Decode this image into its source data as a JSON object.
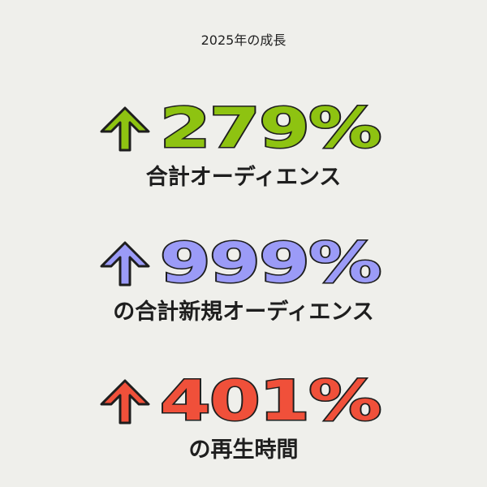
{
  "title": "2025年の成長",
  "stats": [
    {
      "value": "279%",
      "label": "合計オーディエンス",
      "color": "#8ec311",
      "icon": "arrow-up-icon"
    },
    {
      "value": "999%",
      "label": "の合計新規オーディエンス",
      "color": "#9b9bf7",
      "icon": "arrow-up-icon"
    },
    {
      "value": "401%",
      "label": "の再生時間",
      "color": "#f0503a",
      "icon": "arrow-up-icon"
    }
  ]
}
